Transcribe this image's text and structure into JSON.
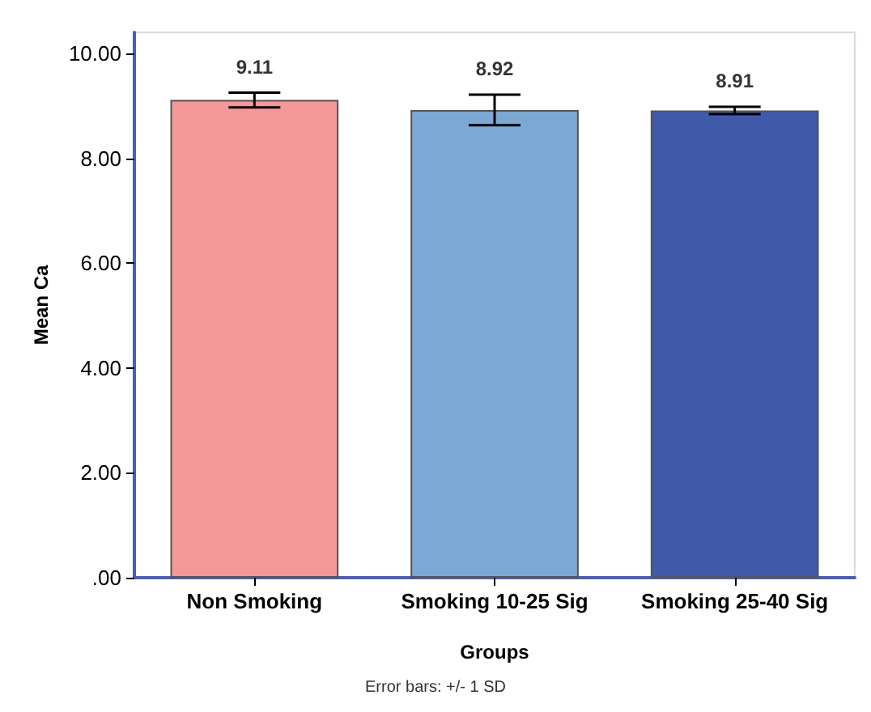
{
  "chart_data": {
    "type": "bar",
    "xlabel": "Groups",
    "ylabel": "Mean Ca",
    "categories": [
      "Non Smoking",
      "Smoking 10-25 Sig",
      "Smoking 25-40 Sig"
    ],
    "values": [
      9.11,
      8.92,
      8.91
    ],
    "colors": [
      "#f4989a",
      "#7ba9d4",
      "#4059a9"
    ],
    "errors": [
      0.14,
      0.29,
      0.07
    ],
    "data_labels": true,
    "ylim": [
      0,
      10.4
    ],
    "yticks": [
      {
        "value": 0,
        "label": ".00"
      },
      {
        "value": 2,
        "label": "2.00"
      },
      {
        "value": 4,
        "label": "4.00"
      },
      {
        "value": 6,
        "label": "6.00"
      },
      {
        "value": 8,
        "label": "8.00"
      },
      {
        "value": 10,
        "label": "10.00"
      }
    ],
    "grid": false,
    "annotations": [
      "Error bars: +/- 1 SD"
    ]
  }
}
